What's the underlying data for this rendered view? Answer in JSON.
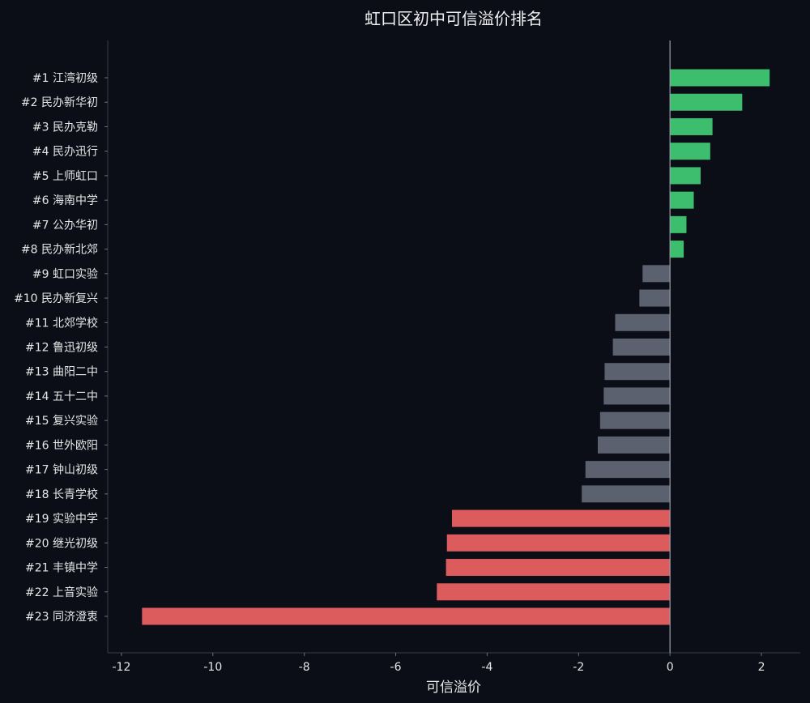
{
  "chart_data": {
    "type": "bar",
    "orientation": "horizontal",
    "title": "虹口区初中可信溢价排名",
    "xlabel": "可信溢价",
    "ylabel": "",
    "xlim": [
      -12.3,
      2.85
    ],
    "xticks": [
      -12,
      -10,
      -8,
      -6,
      -4,
      -2,
      0,
      2
    ],
    "grid": false,
    "colors": {
      "positive": "#3dbd6e",
      "neutral": "#5b616e",
      "negative": "#dc5c5e",
      "background": "#0b0e17"
    },
    "categories": [
      "#1 江湾初级",
      "#2 民办新华初",
      "#3 民办克勒",
      "#4 民办迅行",
      "#5 上师虹口",
      "#6 海南中学",
      "#7 公办华初",
      "#8 民办新北郊",
      "#9 虹口实验",
      "#10 民办新复兴",
      "#11 北郊学校",
      "#12 鲁迅初级",
      "#13 曲阳二中",
      "#14 五十二中",
      "#15 复兴实验",
      "#16 世外欧阳",
      "#17 钟山初级",
      "#18 长青学校",
      "#19 实验中学",
      "#20 继光初级",
      "#21 丰镇中学",
      "#22 上音实验",
      "#23 同济澄衷"
    ],
    "values": [
      2.18,
      1.58,
      0.93,
      0.88,
      0.67,
      0.52,
      0.36,
      0.3,
      -0.6,
      -0.67,
      -1.2,
      -1.25,
      -1.43,
      -1.45,
      -1.53,
      -1.58,
      -1.85,
      -1.93,
      -4.77,
      -4.88,
      -4.9,
      -5.1,
      -11.55
    ],
    "bar_colors": [
      "positive",
      "positive",
      "positive",
      "positive",
      "positive",
      "positive",
      "positive",
      "positive",
      "neutral",
      "neutral",
      "neutral",
      "neutral",
      "neutral",
      "neutral",
      "neutral",
      "neutral",
      "neutral",
      "neutral",
      "negative",
      "negative",
      "negative",
      "negative",
      "negative"
    ]
  }
}
